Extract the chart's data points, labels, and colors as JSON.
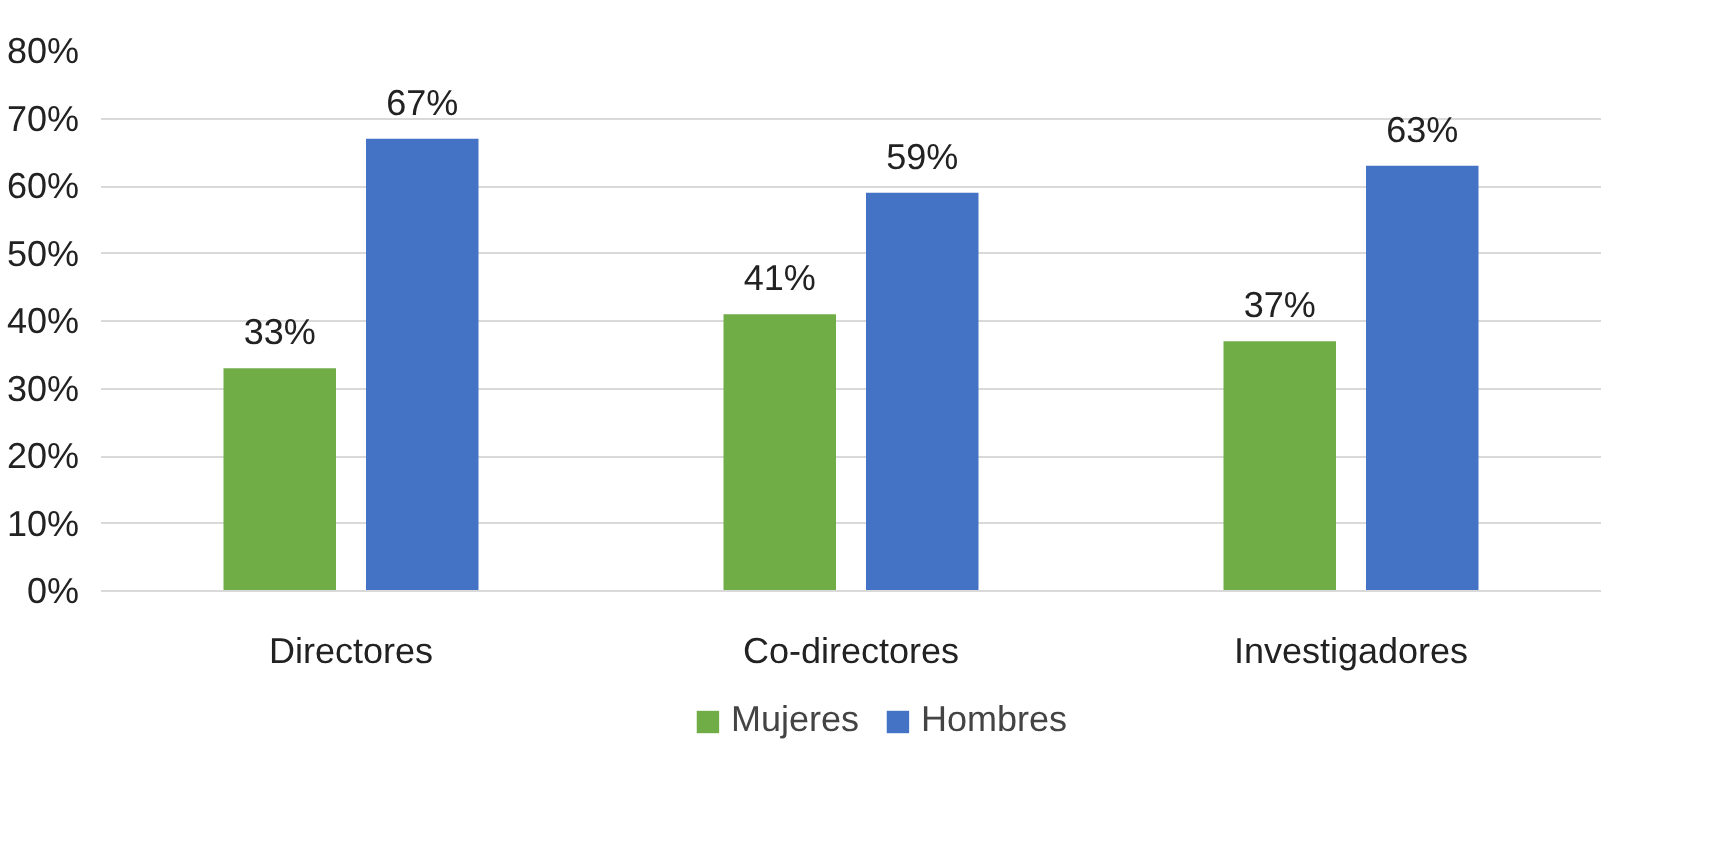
{
  "chart_data": {
    "type": "bar",
    "categories": [
      "Directores",
      "Co-directores",
      "Investigadores"
    ],
    "series": [
      {
        "name": "Mujeres",
        "color": "#70ad47",
        "values": [
          33,
          41,
          37
        ],
        "value_labels": [
          "33%",
          "41%",
          "37%"
        ]
      },
      {
        "name": "Hombres",
        "color": "#4472c4",
        "values": [
          67,
          59,
          63
        ],
        "value_labels": [
          "67%",
          "59%",
          "63%"
        ]
      }
    ],
    "ylim": [
      0,
      80
    ],
    "yticks": [
      {
        "value": 0,
        "label": "0%"
      },
      {
        "value": 10,
        "label": "10%"
      },
      {
        "value": 20,
        "label": "20%"
      },
      {
        "value": 30,
        "label": "30%"
      },
      {
        "value": 40,
        "label": "40%"
      },
      {
        "value": 50,
        "label": "50%"
      },
      {
        "value": 60,
        "label": "60%"
      },
      {
        "value": 70,
        "label": "70%"
      },
      {
        "value": 80,
        "label": "80%"
      }
    ],
    "grid": "y",
    "legend": "bottom"
  }
}
